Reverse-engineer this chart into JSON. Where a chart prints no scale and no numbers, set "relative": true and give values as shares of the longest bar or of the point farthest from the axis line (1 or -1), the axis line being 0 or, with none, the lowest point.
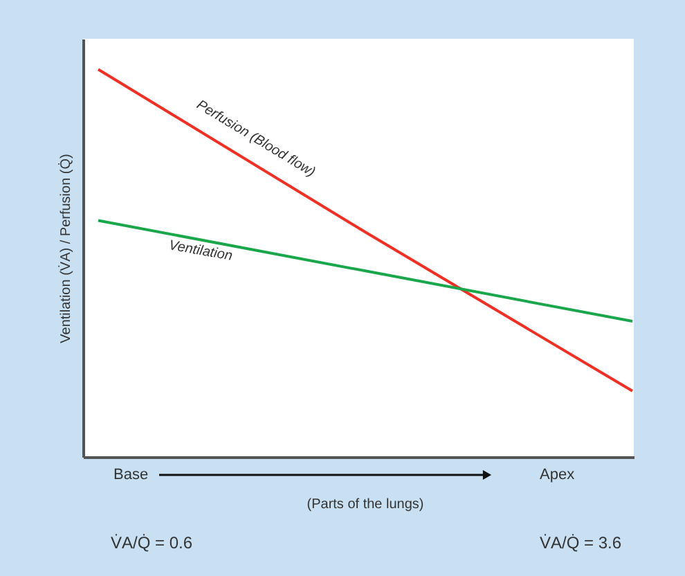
{
  "chart_data": {
    "type": "line",
    "relative": true,
    "xlabel": "(Parts of the lungs)",
    "ylabel": "Ventilation (V̇A) / Perfusion (Q̇)",
    "categories": [
      null,
      null,
      null
    ],
    "series": [
      {
        "name": "Perfusion (Blood flow)",
        "color": "#ee3124",
        "values": [
          1,
          0.58,
          0.17
        ]
      },
      {
        "name": "Ventilation",
        "color": "#1aa64a",
        "values": [
          0.61,
          0.48,
          0.35
        ]
      }
    ],
    "annotations": [
      "Base",
      "Apex",
      "V̇A/Q̇ = 0.6",
      "V̇A/Q̇ = 3.6"
    ],
    "grid": false,
    "legend": false,
    "marker": "none",
    "line_style": "solid"
  }
}
